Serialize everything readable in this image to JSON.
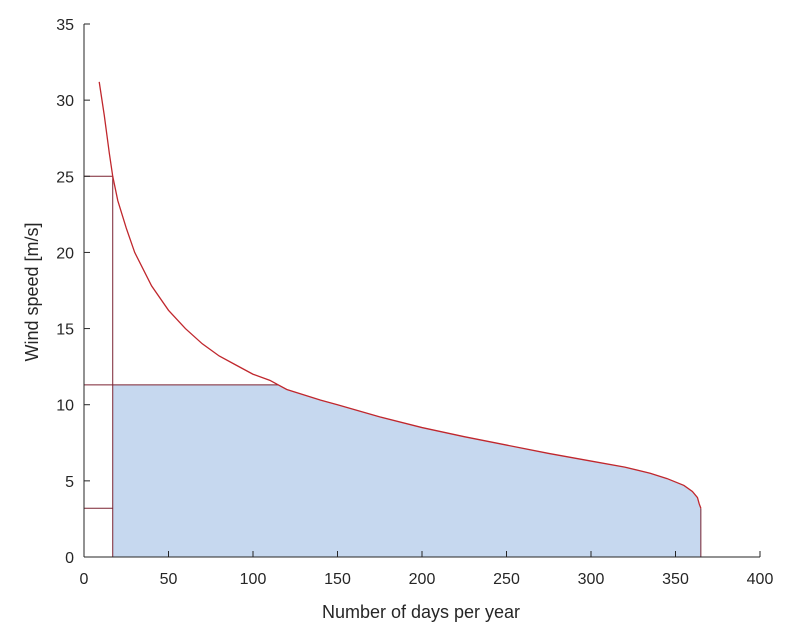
{
  "chart_data": {
    "type": "area",
    "xlabel": "Number of days per year",
    "ylabel": "Wind speed [m/s]",
    "xlim": [
      0,
      400
    ],
    "ylim": [
      0,
      35
    ],
    "xticks": [
      0,
      50,
      100,
      150,
      200,
      250,
      300,
      350,
      400
    ],
    "yticks": [
      0,
      5,
      10,
      15,
      20,
      25,
      30,
      35
    ],
    "grid": false,
    "curve_color": "#c0272d",
    "fill_color": "#c6d8ef",
    "marker_line_color": "#7a2230",
    "series": [
      {
        "x": [
          9,
          12,
          15,
          17,
          20,
          25,
          30,
          40,
          50,
          60,
          70,
          80,
          90,
          100,
          110,
          115,
          120,
          140,
          150,
          175,
          200,
          225,
          250,
          275,
          300,
          320,
          335,
          345,
          355,
          360,
          363,
          364,
          365
        ],
        "y": [
          31.2,
          29.0,
          26.5,
          25.0,
          23.4,
          21.6,
          20.0,
          17.8,
          16.2,
          15.0,
          14.0,
          13.2,
          12.6,
          12.0,
          11.6,
          11.3,
          11.0,
          10.3,
          10.0,
          9.2,
          8.5,
          7.9,
          7.35,
          6.8,
          6.3,
          5.9,
          5.5,
          5.15,
          4.7,
          4.3,
          3.9,
          3.5,
          3.2
        ]
      }
    ],
    "shaded_region": {
      "x_start": 17,
      "x_end": 365,
      "rated_speed": 11.3
    },
    "reference_lines": {
      "cut_in_speed": 3.2,
      "cut_out_speed": 25,
      "x_at_cut_out": 17
    }
  }
}
